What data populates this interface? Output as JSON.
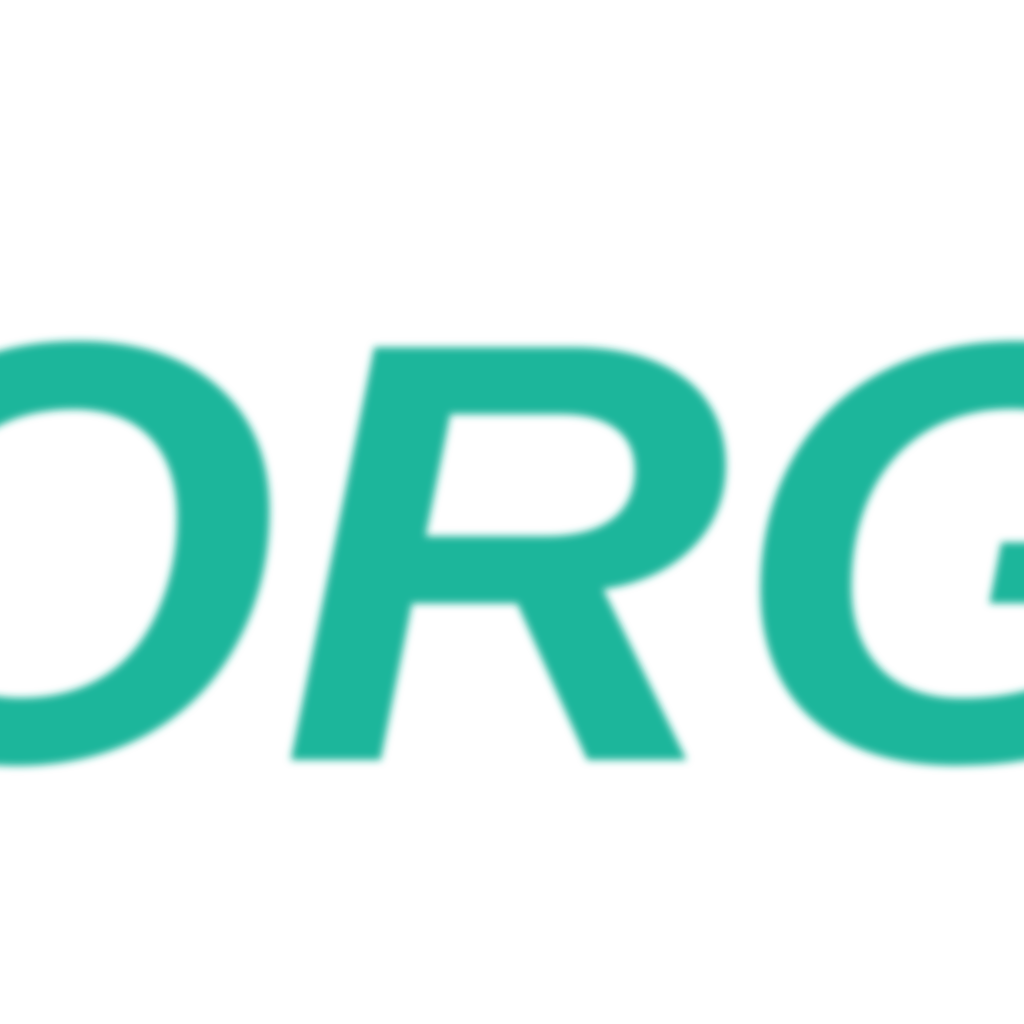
{
  "logo": {
    "text": "ORG"
  }
}
